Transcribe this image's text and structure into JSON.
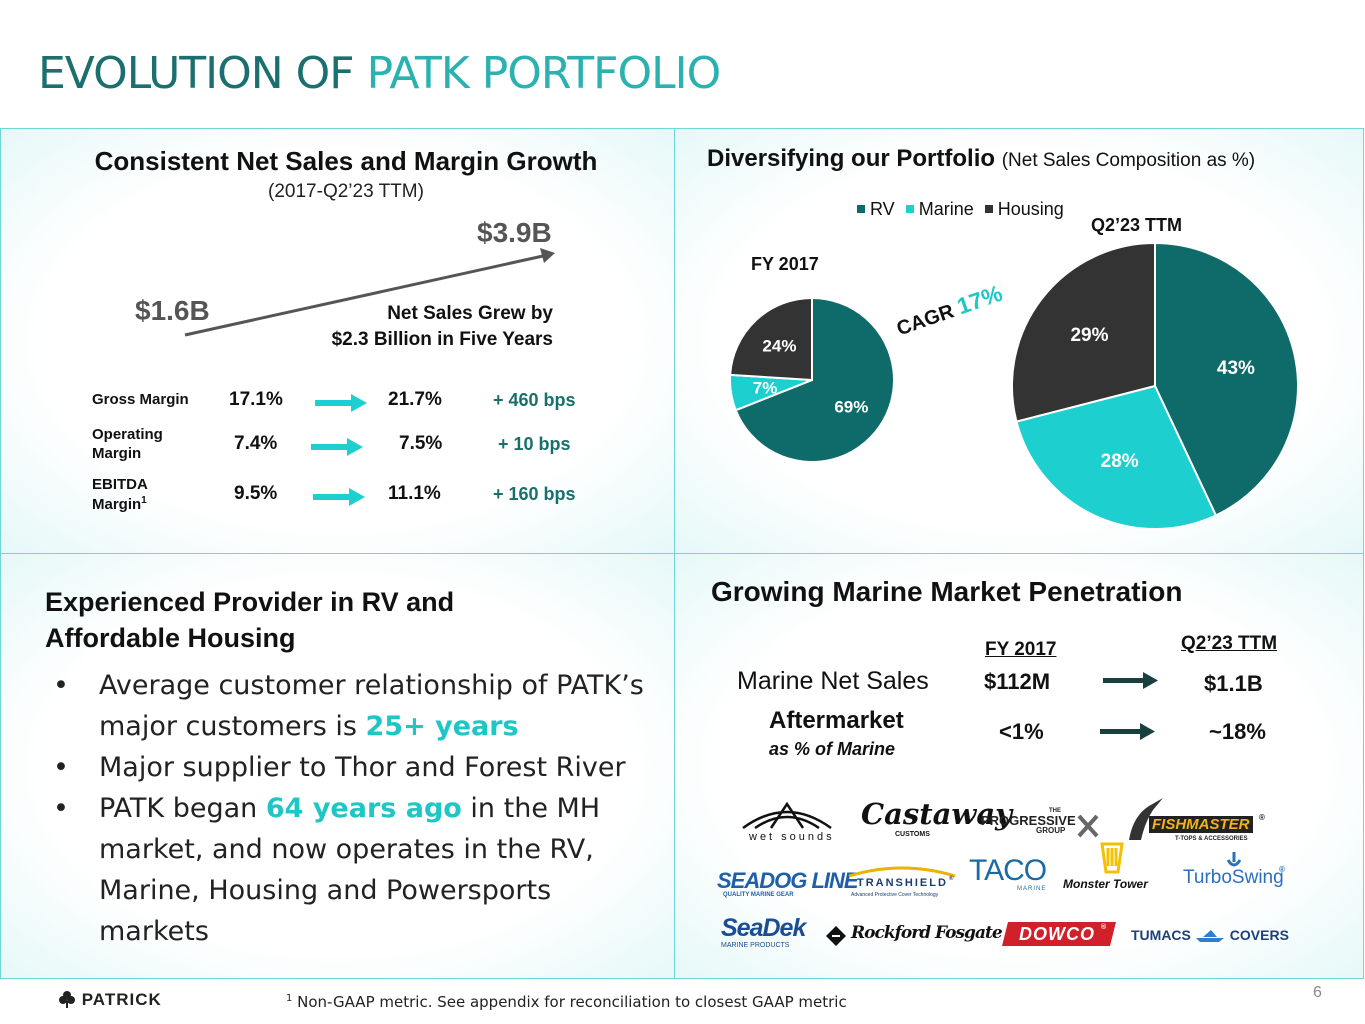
{
  "title": {
    "part1": "EVOLUTION OF ",
    "part2": "PATK PORTFOLIO"
  },
  "colors": {
    "rv": "#0f6b69",
    "marine": "#1ecfcf",
    "housing": "#333333",
    "accent": "#1ec6c6",
    "title_dark": "#1b6f6e"
  },
  "growth": {
    "heading": "Consistent Net Sales and Margin Growth",
    "subheading": "(2017-Q2’23 TTM)",
    "start_value": "$1.6B",
    "end_value": "$3.9B",
    "note_line1": "Net Sales Grew by",
    "note_line2": "$2.3 Billion in Five Years",
    "metrics": [
      {
        "label": "Gross Margin",
        "label_sup": "",
        "from": "17.1%",
        "to": "21.7%",
        "change": "+ 460 bps"
      },
      {
        "label": "Operating Margin",
        "label_sup": "",
        "from": "7.4%",
        "to": "7.5%",
        "change": "+ 10 bps"
      },
      {
        "label": "EBITDA Margin",
        "label_sup": "1",
        "from": "9.5%",
        "to": "11.1%",
        "change": "+ 160 bps"
      }
    ]
  },
  "portfolio": {
    "heading": "Diversifying our Portfolio",
    "heading_note": "(Net Sales Composition as %)",
    "legend": [
      "RV",
      "Marine",
      "Housing"
    ],
    "cagr_label": "CAGR",
    "cagr_value": "17%"
  },
  "chart_data": [
    {
      "type": "pie",
      "title": "FY 2017",
      "categories": [
        "RV",
        "Marine",
        "Housing"
      ],
      "values": [
        69,
        7,
        24
      ],
      "labels": [
        "69%",
        "7%",
        "24%"
      ]
    },
    {
      "type": "pie",
      "title": "Q2’23 TTM",
      "categories": [
        "RV",
        "Marine",
        "Housing"
      ],
      "values": [
        43,
        28,
        29
      ],
      "labels": [
        "43%",
        "28%",
        "29%"
      ]
    }
  ],
  "provider": {
    "heading_line1": "Experienced Provider in RV and",
    "heading_line2": "Affordable Housing",
    "bullet_symbol": "•",
    "b1_pre": "Average customer relationship of PATK’s major customers is ",
    "b1_hl": "25+ years",
    "b2": "Major supplier to Thor and Forest River",
    "b3_pre": "PATK began ",
    "b3_hl": "64 years ago",
    "b3_post": " in the MH market, and now operates in the RV, Marine, Housing and Powersports markets"
  },
  "marine": {
    "heading": "Growing Marine Market Penetration",
    "col1": "FY 2017",
    "col2": "Q2’23 TTM",
    "row1_label": "Marine Net Sales",
    "row1_from": "$112M",
    "row1_to": "$1.1B",
    "row2_label": "Aftermarket",
    "row2_sub": "as % of Marine",
    "row2_from": "<1%",
    "row2_to": "~18%",
    "logos": {
      "wet_sounds": "wet sounds",
      "castaway": "Castaway",
      "castaway_sub": "CUSTOMS",
      "progressive_top": "THE",
      "progressive": "PROGRESSIVE",
      "progressive_bot": "GROUP",
      "fishmaster": "FISHMASTER",
      "fishmaster_reg": "®",
      "fishmaster_sub": "T-TOPS & ACCESSORIES",
      "seadogline": "SEADOG LINE",
      "seadogline_sub": "QUALITY MARINE GEAR",
      "transhield": "TRANSHIELD",
      "transhield_reg": "®",
      "transhield_sub": "Advanced Protective Cover Technology",
      "taco": "TACO",
      "taco_sub": "MARINE",
      "monster_tower": "Monster Tower",
      "turboswing": "TurboSwing",
      "turboswing_reg": "®",
      "seadek": "SeaDek",
      "seadek_sub": "MARINE PRODUCTS",
      "rockford": "Rockford Fosgate",
      "dowco": "DOWCO",
      "dowco_reg": "®",
      "tumacs": "TUMACS",
      "tumacs2": "COVERS"
    }
  },
  "footer": {
    "brand": "PATRICK",
    "footnote_sup": "1",
    "footnote": " Non-GAAP metric. See appendix for reconciliation to closest GAAP metric",
    "page_number": "6"
  }
}
